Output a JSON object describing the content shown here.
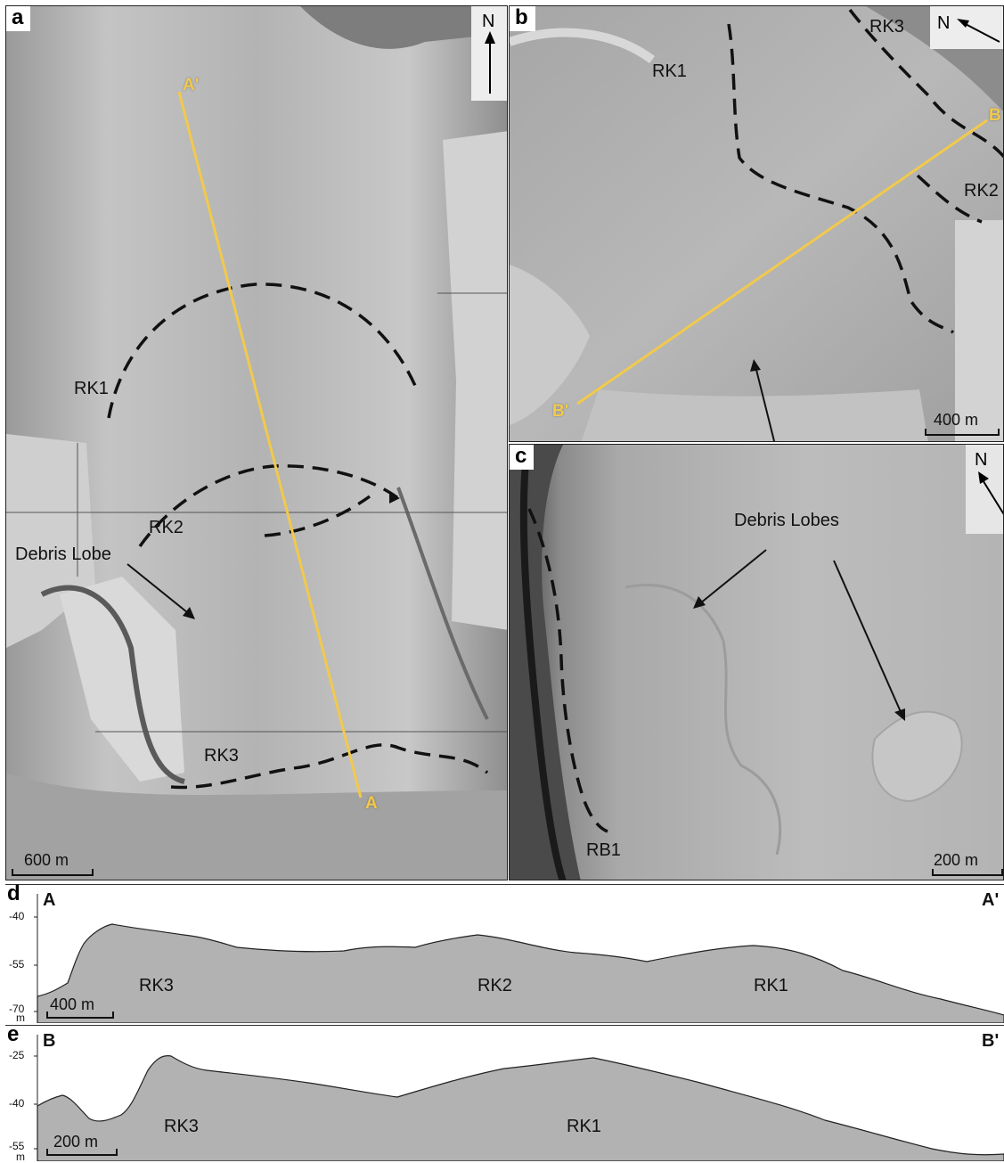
{
  "panel_a": {
    "letter": "a",
    "north": "N",
    "profile_start": "A'",
    "profile_end": "A",
    "labels": {
      "rk1": "RK1",
      "rk2": "RK2",
      "rk3": "RK3",
      "debris_lobe": "Debris Lobe"
    },
    "scale": "600 m"
  },
  "panel_b": {
    "letter": "b",
    "north": "N",
    "profile_start": "B",
    "profile_end": "B'",
    "labels": {
      "rk1": "RK1",
      "rk2": "RK2",
      "rk3": "RK3"
    },
    "scale": "400 m"
  },
  "panel_c": {
    "letter": "c",
    "north": "N",
    "labels": {
      "debris_lobes": "Debris Lobes",
      "rb1": "RB1"
    },
    "scale": "200 m"
  },
  "panel_d": {
    "letter": "d",
    "start": "A",
    "end": "A'",
    "y_ticks": [
      "-40",
      "-55",
      "-70"
    ],
    "unit": "m",
    "scale": "400 m",
    "labels": {
      "rk3": "RK3",
      "rk2": "RK2",
      "rk1": "RK1"
    }
  },
  "panel_e": {
    "letter": "e",
    "start": "B",
    "end": "B'",
    "y_ticks": [
      "-25",
      "-40",
      "-55"
    ],
    "unit": "m",
    "scale": "200 m",
    "labels": {
      "rk3": "RK3",
      "rk1": "RK1"
    }
  },
  "colors": {
    "profile_line": "#f2c94c",
    "terrain": "#b9b9b9",
    "profile_fill": "#b2b2b2"
  }
}
